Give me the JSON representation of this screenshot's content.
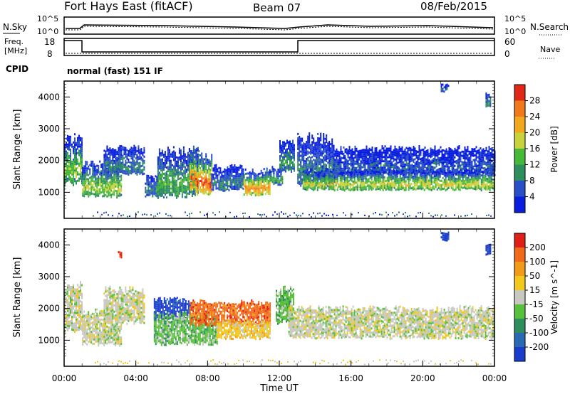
{
  "header": {
    "title": "Fort Hays East (fitACF)",
    "beam": "Beam 07",
    "date": "08/Feb/2015"
  },
  "top_panels": {
    "nsky_label": "N.Sky",
    "nsearch_label": "N.Search",
    "freq_label_1": "Freq.",
    "freq_label_2": "[MHz]",
    "nave_label": "Nave",
    "cpid_label": "CPID",
    "cpid_value": "normal (fast) 151 IF",
    "noise_ticks_left": [
      "10^5",
      "10^0"
    ],
    "noise_ticks_right": [
      "10^5",
      "10^0"
    ],
    "freq_ticks": [
      "18",
      "8"
    ],
    "nave_ticks": [
      "60",
      "0"
    ]
  },
  "chart_data": [
    {
      "type": "heatmap",
      "name": "power",
      "ylabel": "Slant Range [km]",
      "ylim": [
        180,
        4500
      ],
      "yticks": [
        1000,
        2000,
        3000,
        4000
      ],
      "xlim": [
        0,
        24
      ],
      "colorbar_label": "Power [dB]",
      "colorbar_ticks": [
        "4",
        "8",
        "12",
        "16",
        "20",
        "24",
        "28"
      ],
      "colors": [
        "#0a1ee0",
        "#2a50c8",
        "#2e8e5e",
        "#46b83a",
        "#c8d23a",
        "#f2a81c",
        "#f07a1a",
        "#e02818"
      ],
      "blobs": [
        {
          "t0": 0.0,
          "t1": 1.0,
          "r0": 1300,
          "r1": 2700,
          "level": 0.5
        },
        {
          "t0": 1.0,
          "t1": 3.2,
          "r0": 900,
          "r1": 1900,
          "level": 0.55
        },
        {
          "t0": 2.2,
          "t1": 4.5,
          "r0": 1600,
          "r1": 2400,
          "level": 0.3
        },
        {
          "t0": 4.5,
          "t1": 5.4,
          "r0": 900,
          "r1": 1500,
          "level": 0.3
        },
        {
          "t0": 5.2,
          "t1": 7.5,
          "r0": 900,
          "r1": 2300,
          "level": 0.45
        },
        {
          "t0": 7.0,
          "t1": 8.2,
          "r0": 1000,
          "r1": 2200,
          "level": 0.9
        },
        {
          "t0": 8.2,
          "t1": 10.0,
          "r0": 1100,
          "r1": 1800,
          "level": 0.3
        },
        {
          "t0": 10.0,
          "t1": 11.5,
          "r0": 950,
          "r1": 1700,
          "level": 0.8
        },
        {
          "t0": 11.5,
          "t1": 12.2,
          "r0": 1300,
          "r1": 1800,
          "level": 0.4
        },
        {
          "t0": 12.0,
          "t1": 12.8,
          "r0": 1700,
          "r1": 2600,
          "level": 0.35
        },
        {
          "t0": 13.0,
          "t1": 15.0,
          "r0": 1200,
          "r1": 2700,
          "level": 0.3
        },
        {
          "t0": 13.3,
          "t1": 24.0,
          "r0": 1100,
          "r1": 1700,
          "level": 0.6
        },
        {
          "t0": 15.0,
          "t1": 24.0,
          "r0": 1600,
          "r1": 2400,
          "level": 0.2
        },
        {
          "t0": 21.0,
          "t1": 21.4,
          "r0": 4150,
          "r1": 4400,
          "level": 0.25
        },
        {
          "t0": 23.5,
          "t1": 23.8,
          "r0": 3700,
          "r1": 4100,
          "level": 0.35
        }
      ]
    },
    {
      "type": "heatmap",
      "name": "velocity",
      "ylabel": "Slant Range [km]",
      "xlabel": "Time UT",
      "ylim": [
        180,
        4500
      ],
      "yticks": [
        1000,
        2000,
        3000,
        4000
      ],
      "xlim": [
        0,
        24
      ],
      "xticks": [
        "00:00",
        "04:00",
        "08:00",
        "12:00",
        "16:00",
        "20:00",
        "00:00"
      ],
      "colorbar_label": "Velocity [m s^-1]",
      "colorbar_ticks": [
        "200",
        "100",
        "50",
        "15",
        "-15",
        "-50",
        "-100",
        "-200"
      ],
      "colors": [
        "#1a3ccc",
        "#2a6ab4",
        "#2e8e5e",
        "#58c03a",
        "#c8c8c0",
        "#f2c81c",
        "#f29a1a",
        "#f06a1a",
        "#e02018"
      ],
      "blobs": [
        {
          "t0": 0.0,
          "t1": 1.0,
          "r0": 1300,
          "r1": 2700,
          "level": 4
        },
        {
          "t0": 1.0,
          "t1": 3.2,
          "r0": 900,
          "r1": 1900,
          "level": 4
        },
        {
          "t0": 2.2,
          "t1": 4.5,
          "r0": 1600,
          "r1": 2600,
          "level": 4
        },
        {
          "t0": 5.0,
          "t1": 7.0,
          "r0": 1700,
          "r1": 2300,
          "level": 0
        },
        {
          "t0": 5.0,
          "t1": 8.5,
          "r0": 900,
          "r1": 1800,
          "level": 3
        },
        {
          "t0": 7.0,
          "t1": 11.5,
          "r0": 1500,
          "r1": 2200,
          "level": 7
        },
        {
          "t0": 8.5,
          "t1": 11.5,
          "r0": 1100,
          "r1": 1600,
          "level": 5
        },
        {
          "t0": 11.8,
          "t1": 12.8,
          "r0": 1600,
          "r1": 2600,
          "level": 3
        },
        {
          "t0": 12.5,
          "t1": 24.0,
          "r0": 1100,
          "r1": 2000,
          "level": 4
        },
        {
          "t0": 21.0,
          "t1": 21.4,
          "r0": 4150,
          "r1": 4400,
          "level": 0
        },
        {
          "t0": 23.5,
          "t1": 23.8,
          "r0": 3700,
          "r1": 4000,
          "level": 0
        },
        {
          "t0": 3.0,
          "t1": 3.2,
          "r0": 3600,
          "r1": 3800,
          "level": 8
        }
      ]
    }
  ]
}
